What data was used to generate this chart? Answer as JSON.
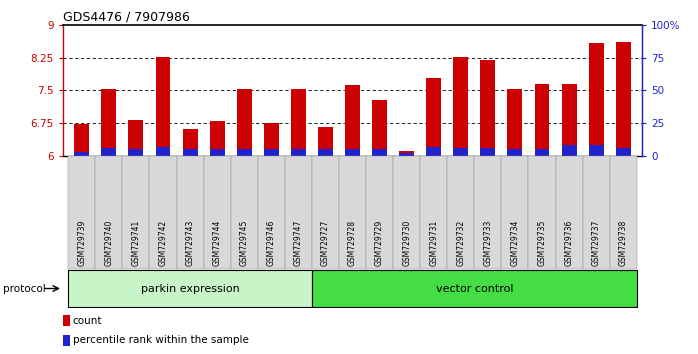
{
  "title": "GDS4476 / 7907986",
  "samples": [
    "GSM729739",
    "GSM729740",
    "GSM729741",
    "GSM729742",
    "GSM729743",
    "GSM729744",
    "GSM729745",
    "GSM729746",
    "GSM729747",
    "GSM729727",
    "GSM729728",
    "GSM729729",
    "GSM729730",
    "GSM729731",
    "GSM729732",
    "GSM729733",
    "GSM729734",
    "GSM729735",
    "GSM729736",
    "GSM729737",
    "GSM729738"
  ],
  "count_values": [
    6.72,
    7.52,
    6.82,
    8.27,
    6.62,
    6.8,
    7.52,
    6.76,
    7.52,
    6.66,
    7.63,
    7.28,
    6.1,
    7.78,
    8.27,
    8.19,
    7.53,
    7.64,
    7.65,
    8.58,
    8.6
  ],
  "percentile_values": [
    3,
    6,
    5,
    7,
    5,
    5,
    5,
    5,
    5,
    5,
    5,
    5,
    2,
    7,
    6,
    6,
    5,
    5,
    8,
    8,
    6
  ],
  "parkin_count": 9,
  "vector_count": 12,
  "ylim_left": [
    6,
    9
  ],
  "ylim_right": [
    0,
    100
  ],
  "yticks_left": [
    6,
    6.75,
    7.5,
    8.25,
    9
  ],
  "yticks_right": [
    0,
    25,
    50,
    75,
    100
  ],
  "grid_values": [
    6.75,
    7.5,
    8.25
  ],
  "bar_color_red": "#cc0000",
  "bar_color_blue": "#2222cc",
  "bar_width": 0.55,
  "parkin_color": "#c8f5c8",
  "vector_color": "#44dd44",
  "legend_count": "count",
  "legend_percentile": "percentile rank within the sample",
  "protocol_label": "protocol",
  "group_left_label": "parkin expression",
  "group_right_label": "vector control",
  "pct_scale": 0.006
}
